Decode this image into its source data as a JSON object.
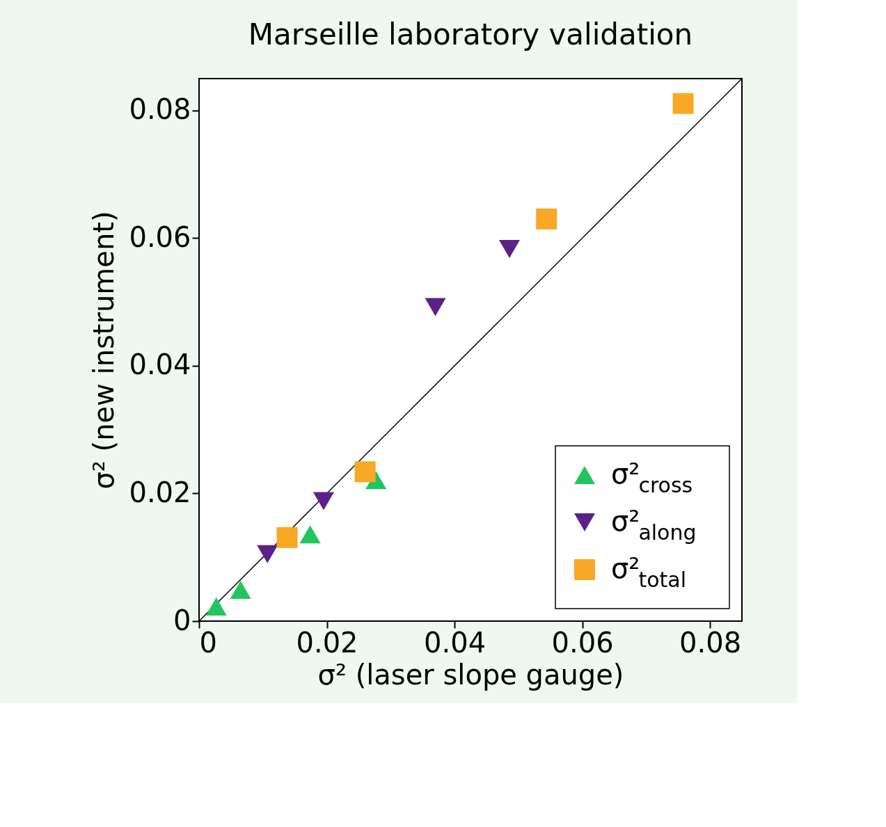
{
  "chart_data": {
    "type": "scatter",
    "title": "Marseille laboratory validation",
    "xlabel": "σ² (laser slope gauge)",
    "ylabel": "σ² (new instrument)",
    "xlim": [
      0,
      0.085
    ],
    "ylim": [
      0,
      0.085
    ],
    "xticks": [
      0,
      0.02,
      0.04,
      0.06,
      0.08
    ],
    "yticks": [
      0,
      0.02,
      0.04,
      0.06,
      0.08
    ],
    "grid": false,
    "legend": "bottom right",
    "series": [
      {
        "name": "σ²$_{cross}$",
        "color": "#22c55e",
        "marker": "triangle",
        "x": [
          0.0027,
          0.0065,
          0.0174,
          0.0277
        ],
        "values": [
          0.0023,
          0.0049,
          0.0136,
          0.0221
        ]
      },
      {
        "name": "σ²$_{along}$",
        "color": "#5b2188",
        "marker": "triangle-down",
        "x": [
          0.0107,
          0.0195,
          0.037,
          0.0486
        ],
        "values": [
          0.0105,
          0.0188,
          0.0492,
          0.0583
        ]
      },
      {
        "name": "σ²$_{total}$",
        "color": "#f9a825",
        "marker": "square",
        "x": [
          0.0138,
          0.026,
          0.0544,
          0.0758
        ],
        "values": [
          0.0131,
          0.0234,
          0.063,
          0.0811
        ]
      },
      {
        "type": "line",
        "color": "#000000",
        "x": [
          0,
          0.085
        ],
        "values": [
          0,
          0.085
        ]
      }
    ]
  }
}
